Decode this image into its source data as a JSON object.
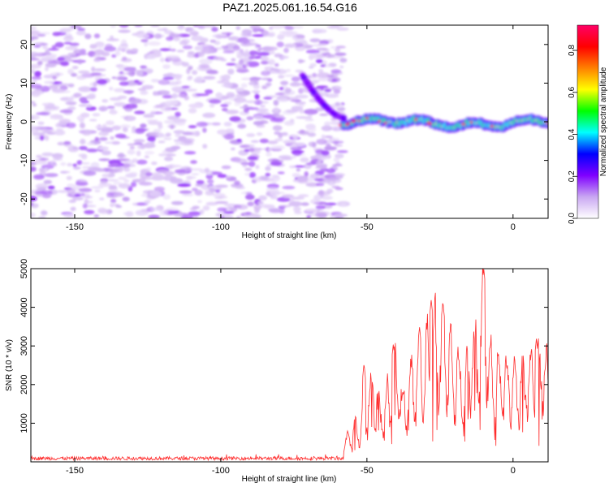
{
  "title": "PAZ1.2025.061.16.54.G16",
  "chart_data": [
    {
      "type": "heatmap",
      "xlabel": "Height of straight line (km)",
      "ylabel": "Frequency (Hz)",
      "xlim": [
        -165,
        12
      ],
      "ylim": [
        -25,
        25
      ],
      "x_ticks": [
        -150,
        -100,
        -50,
        0
      ],
      "y_ticks": [
        -20,
        -10,
        0,
        10,
        20
      ],
      "colorbar": {
        "label": "Normalized spectral amplitude",
        "range": [
          0,
          0.92
        ],
        "ticks": [
          "0.0",
          "0.2",
          "0.4",
          "0.6",
          "0.8"
        ],
        "colormap": [
          "#ffffff",
          "#c9a7f2",
          "#7f00ff",
          "#0000ff",
          "#00ffff",
          "#00ff00",
          "#ffff00",
          "#ff8000",
          "#ff0000",
          "#ff0066"
        ]
      },
      "signal_track": {
        "onset_height_km": -58,
        "bend_start": [
          -72,
          12
        ],
        "bend_end": [
          -58,
          1
        ],
        "mean_frequency_hz": 0
      },
      "noise_region_km": [
        -165,
        -58
      ],
      "grid": false
    },
    {
      "type": "line",
      "xlabel": "Height of straight line (km)",
      "ylabel": "SNR (10 * v/v)",
      "xlim": [
        -165,
        12
      ],
      "ylim": [
        0,
        5000
      ],
      "x_ticks": [
        -150,
        -100,
        -50,
        0
      ],
      "y_ticks": [
        1000,
        2000,
        3000,
        4000,
        5000
      ],
      "color": "#ff2b2b",
      "grid": false,
      "envelope": {
        "x": [
          -165,
          -100,
          -60,
          -58,
          -55,
          -52,
          -50,
          -48,
          -45,
          -42,
          -40,
          -38,
          -35,
          -32,
          -30,
          -27,
          -25,
          -23,
          -20,
          -17,
          -15,
          -12,
          -10,
          -8,
          -5,
          -2,
          0,
          3,
          5,
          8,
          10,
          12
        ],
        "y": [
          90,
          90,
          90,
          400,
          900,
          1000,
          1600,
          2200,
          1400,
          2000,
          2800,
          1600,
          2300,
          2600,
          2900,
          3500,
          3300,
          3200,
          2700,
          2300,
          2900,
          3300,
          4700,
          2800,
          2500,
          2300,
          2400,
          2200,
          2600,
          2500,
          2800,
          2300
        ]
      },
      "peaks": [
        {
          "x": -51,
          "y": 2550
        },
        {
          "x": -41,
          "y": 3050
        },
        {
          "x": -32,
          "y": 3500
        },
        {
          "x": -28,
          "y": 4200
        },
        {
          "x": -24,
          "y": 4150
        },
        {
          "x": -10,
          "y": 5000
        },
        {
          "x": 8,
          "y": 3200
        }
      ]
    }
  ]
}
